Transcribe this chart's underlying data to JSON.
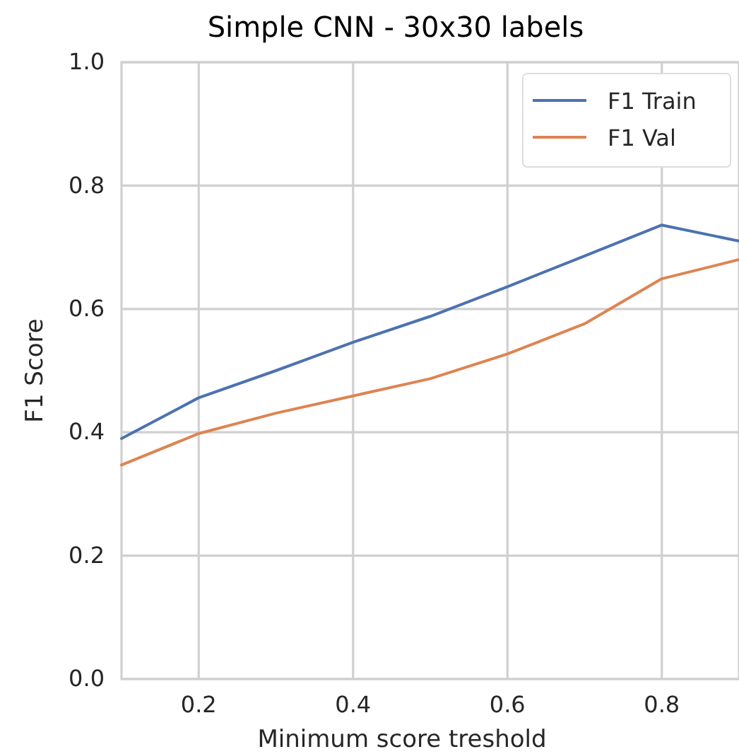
{
  "chart_data": {
    "type": "line",
    "title": "Simple CNN - 30x30 labels",
    "xlabel": "Minimum score treshold",
    "ylabel": "F1 Score",
    "x": [
      0.1,
      0.2,
      0.3,
      0.4,
      0.5,
      0.6,
      0.7,
      0.8,
      0.9
    ],
    "series": [
      {
        "name": "F1 Train",
        "color": "#4c72b0",
        "values": [
          0.39,
          0.456,
          0.5,
          0.546,
          0.588,
          0.636,
          0.686,
          0.736,
          0.71
        ]
      },
      {
        "name": "F1 Val",
        "color": "#dd8452",
        "values": [
          0.347,
          0.398,
          0.431,
          0.459,
          0.487,
          0.527,
          0.576,
          0.649,
          0.68
        ]
      }
    ],
    "xlim": [
      0.1,
      0.9
    ],
    "xticks": [
      0.2,
      0.4,
      0.6,
      0.8
    ],
    "ylim": [
      0,
      1
    ],
    "yticks": [
      {
        "value": 0,
        "label": "0.0"
      },
      0.2,
      0.4,
      0.6,
      0.8,
      {
        "value": 1,
        "label": "1.0"
      }
    ],
    "grid": true,
    "legend": "top right",
    "line_style": "solid",
    "marker": "none"
  }
}
